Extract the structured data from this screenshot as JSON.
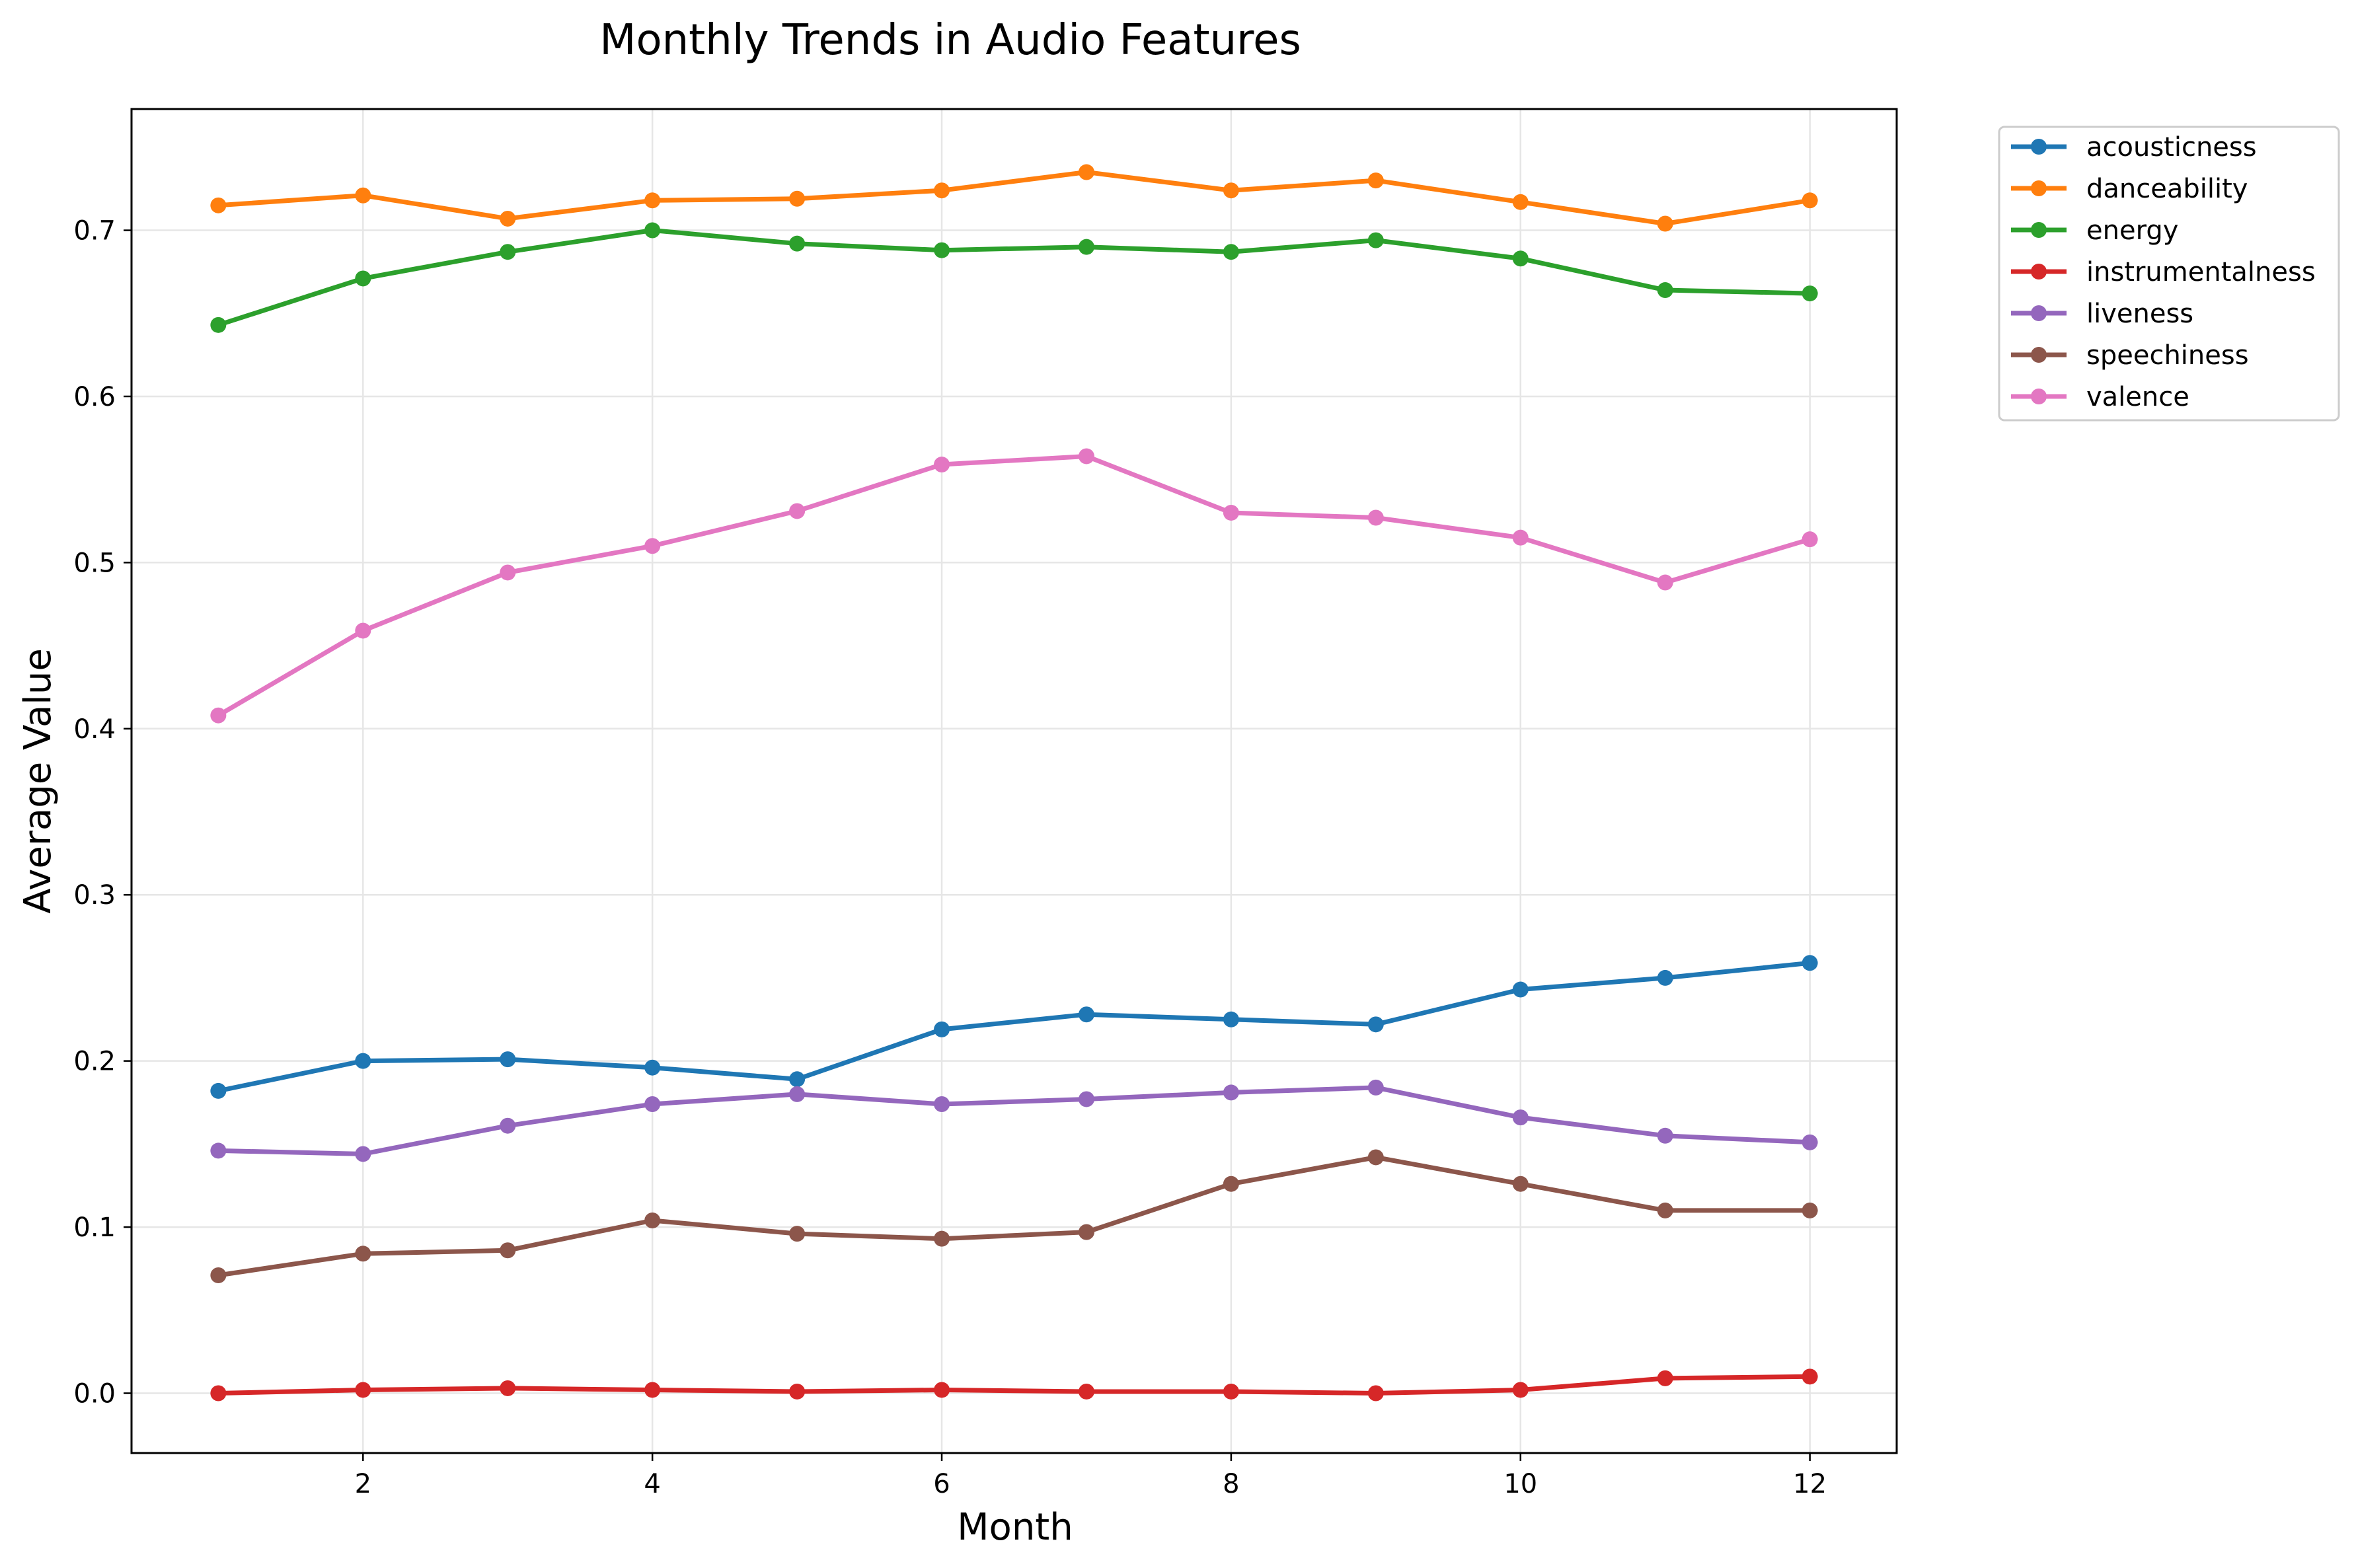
{
  "chart_data": {
    "type": "line",
    "title": "Monthly Trends in Audio Features",
    "xlabel": "Month",
    "ylabel": "Average Value",
    "x": [
      1,
      2,
      3,
      4,
      5,
      6,
      7,
      8,
      9,
      10,
      11,
      12
    ],
    "xlim": [
      0.4,
      12.6
    ],
    "ylim": [
      -0.036,
      0.773
    ],
    "xticks": [
      2,
      4,
      6,
      8,
      10,
      12
    ],
    "yticks": [
      0.0,
      0.1,
      0.2,
      0.3,
      0.4,
      0.5,
      0.6,
      0.7
    ],
    "xtick_labels": [
      "2",
      "4",
      "6",
      "8",
      "10",
      "12"
    ],
    "ytick_labels": [
      "0.0",
      "0.1",
      "0.2",
      "0.3",
      "0.4",
      "0.5",
      "0.6",
      "0.7"
    ],
    "grid": true,
    "legend_position": "outside-top-right",
    "series": [
      {
        "name": "acousticness",
        "color": "#1f77b4",
        "values": [
          0.182,
          0.2,
          0.201,
          0.196,
          0.189,
          0.219,
          0.228,
          0.225,
          0.222,
          0.243,
          0.25,
          0.259
        ]
      },
      {
        "name": "danceability",
        "color": "#ff7f0e",
        "values": [
          0.715,
          0.721,
          0.707,
          0.718,
          0.719,
          0.724,
          0.735,
          0.724,
          0.73,
          0.717,
          0.704,
          0.718
        ]
      },
      {
        "name": "energy",
        "color": "#2ca02c",
        "values": [
          0.643,
          0.671,
          0.687,
          0.7,
          0.692,
          0.688,
          0.69,
          0.687,
          0.694,
          0.683,
          0.664,
          0.662
        ]
      },
      {
        "name": "instrumentalness",
        "color": "#d62728",
        "values": [
          0.0,
          0.002,
          0.003,
          0.002,
          0.001,
          0.002,
          0.001,
          0.001,
          0.0,
          0.002,
          0.009,
          0.01
        ]
      },
      {
        "name": "liveness",
        "color": "#9467bd",
        "values": [
          0.146,
          0.144,
          0.161,
          0.174,
          0.18,
          0.174,
          0.177,
          0.181,
          0.184,
          0.166,
          0.155,
          0.151
        ]
      },
      {
        "name": "speechiness",
        "color": "#8c564b",
        "values": [
          0.071,
          0.084,
          0.086,
          0.104,
          0.096,
          0.093,
          0.097,
          0.126,
          0.142,
          0.126,
          0.11,
          0.11
        ]
      },
      {
        "name": "valence",
        "color": "#e377c2",
        "values": [
          0.408,
          0.459,
          0.494,
          0.51,
          0.531,
          0.559,
          0.564,
          0.53,
          0.527,
          0.515,
          0.488,
          0.514
        ]
      }
    ]
  }
}
